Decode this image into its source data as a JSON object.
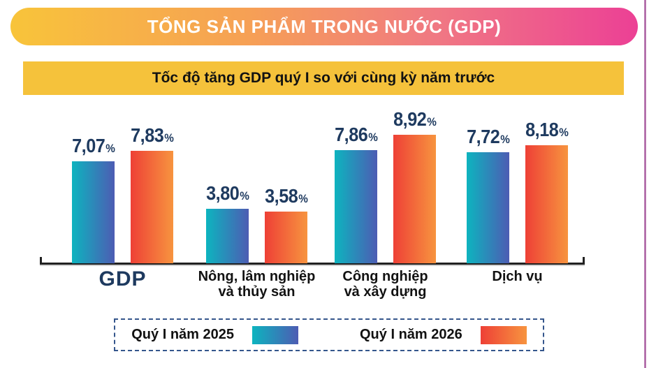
{
  "header": {
    "title": "TỔNG SẢN PHẨM TRONG NƯỚC (GDP)"
  },
  "subtitle_bar": {
    "text": "Tốc độ tăng GDP quý I so với cùng kỳ năm trước"
  },
  "chart_data": {
    "type": "bar",
    "title": "Tốc độ tăng GDP quý I so với cùng kỳ năm trước",
    "unit": "%",
    "decimal_separator": ",",
    "categories": [
      "GDP",
      "Nông, lâm nghiệp và thủy sản",
      "Công nghiệp và xây dựng",
      "Dịch vụ"
    ],
    "category_lines": [
      [
        "GDP"
      ],
      [
        "Nông, lâm nghiệp",
        "và thủy sản"
      ],
      [
        "Công nghiệp",
        "và xây dựng"
      ],
      [
        "Dịch vụ"
      ]
    ],
    "category_keys": [
      "gdp",
      "agriculture-forestry-fishery",
      "industry-construction",
      "services"
    ],
    "series": [
      {
        "key": "q1-2025",
        "name": "Quý I năm 2025",
        "values": [
          7.07,
          3.8,
          7.86,
          7.72
        ],
        "labels": [
          "7,07",
          "3,80",
          "7,86",
          "7,72"
        ],
        "color_start": "#0db4bf",
        "color_end": "#4d5cb3"
      },
      {
        "key": "q1-2026",
        "name": "Quý I năm 2026",
        "values": [
          7.83,
          3.58,
          8.92,
          8.18
        ],
        "labels": [
          "7,83",
          "3,58",
          "8,92",
          "8,18"
        ],
        "color_start": "#ee4036",
        "color_end": "#f7943f"
      }
    ],
    "ylim": [
      0,
      9.5
    ],
    "grid": false,
    "legend_position": "bottom"
  },
  "colors": {
    "header-g1": "#f8c43a",
    "header-g2": "#f6a055",
    "header-g3": "#f07883",
    "header-g4": "#ec4095",
    "subtitle-bg": "#f5c23b",
    "value-navy": "#1e3a5f",
    "axis-color": "#212121",
    "legend-border": "#35568c",
    "border-purple": "#9c4f96"
  }
}
